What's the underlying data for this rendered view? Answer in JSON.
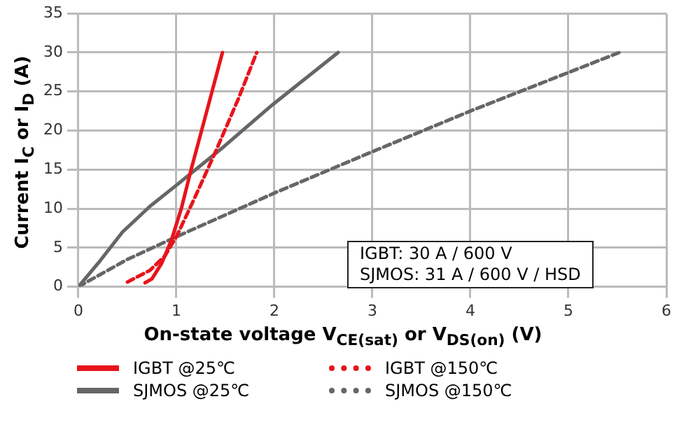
{
  "chart_data": {
    "type": "line",
    "xlabel": "On-state voltage V$_{CE(sat)}$ or V$_{DS(on)}$ (V)",
    "ylabel": "Current I$_{C}$ or I$_{D}$ (A)",
    "xlim": [
      0,
      6
    ],
    "xticks": [
      0,
      1,
      2,
      3,
      4,
      5,
      6
    ],
    "ylim": [
      0,
      35
    ],
    "yticks": [
      0,
      5,
      10,
      15,
      20,
      25,
      30,
      35
    ],
    "grid": true,
    "legend": "bottom",
    "marker": "none",
    "annotations": [
      "IGBT: 30 A / 600 V",
      "SJMOS: 31 A / 600 V / HSD"
    ],
    "series": [
      {
        "name": "IGBT @25℃",
        "color": "#e8141b",
        "line_style": "solid",
        "x": [
          0.68,
          0.75,
          0.85,
          0.95,
          1.05,
          1.15,
          1.3,
          1.47
        ],
        "values": [
          0.5,
          1,
          3,
          6,
          10,
          15,
          22,
          30
        ]
      },
      {
        "name": "IGBT @150℃",
        "color": "#e8141b",
        "line_style": "dashed",
        "x": [
          0.5,
          0.73,
          0.88,
          1.0,
          1.18,
          1.4,
          1.63,
          1.82
        ],
        "values": [
          0.6,
          2.1,
          3.9,
          6.4,
          11.2,
          17.3,
          24,
          30
        ]
      },
      {
        "name": "SJMOS @25℃",
        "color": "#666666",
        "line_style": "solid",
        "x": [
          0,
          0.22,
          0.45,
          0.73,
          1.0,
          1.48,
          1.98,
          2.65
        ],
        "values": [
          0,
          3.3,
          7,
          10.3,
          13,
          17.9,
          23.3,
          30
        ]
      },
      {
        "name": "SJMOS @150℃",
        "color": "#666666",
        "line_style": "dashed",
        "x": [
          0,
          0.5,
          1,
          2,
          3,
          4,
          5.52
        ],
        "values": [
          0,
          3.5,
          6.4,
          12,
          17.3,
          22.5,
          30
        ]
      }
    ]
  }
}
